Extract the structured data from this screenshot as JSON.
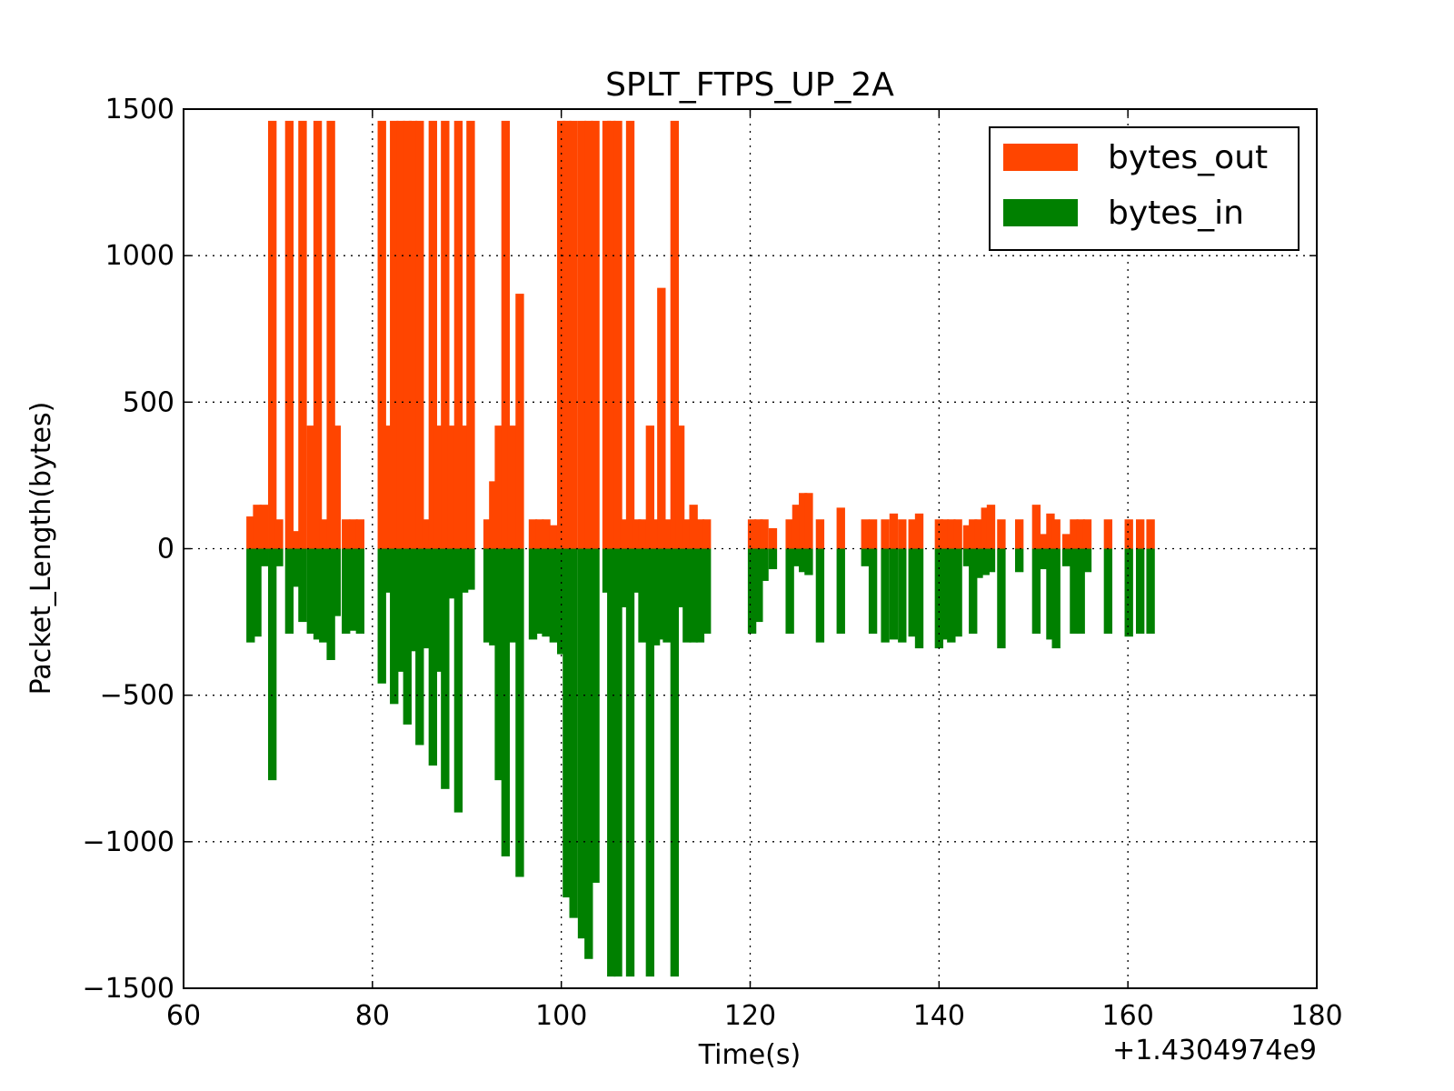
{
  "chart_data": {
    "type": "bar",
    "title": "SPLT_FTPS_UP_2A",
    "x_label": "Time(s)",
    "y_label": "Packet_Length(bytes)",
    "x_offset_label": "+1.4304974e9",
    "x": [
      67.1,
      67.8,
      68.5,
      69.4,
      70.1,
      71.2,
      72.0,
      72.6,
      73.5,
      74.2,
      74.8,
      75.6,
      76.2,
      77.2,
      78.0,
      78.7,
      81.0,
      81.6,
      82.3,
      83.0,
      83.7,
      84.3,
      85.0,
      85.7,
      86.4,
      87.0,
      87.7,
      88.4,
      89.1,
      89.7,
      90.4,
      92.2,
      92.8,
      93.4,
      94.1,
      94.8,
      95.6,
      97.0,
      97.7,
      98.4,
      99.2,
      100.0,
      100.6,
      101.3,
      102.2,
      102.9,
      103.6,
      104.8,
      105.3,
      106.0,
      106.7,
      107.3,
      108.0,
      108.6,
      109.4,
      110.0,
      110.6,
      111.2,
      112.0,
      112.6,
      113.3,
      114.0,
      114.7,
      115.4,
      120.2,
      120.9,
      121.5,
      122.4,
      124.2,
      124.9,
      125.6,
      126.2,
      127.4,
      129.6,
      132.2,
      133.0,
      134.3,
      135.2,
      136.1,
      137.2,
      137.9,
      140.0,
      140.6,
      141.3,
      142.0,
      143.0,
      143.6,
      144.2,
      144.9,
      145.5,
      146.6,
      148.5,
      150.3,
      151.0,
      151.8,
      152.4,
      153.5,
      154.3,
      155.0,
      155.7,
      157.9,
      160.1,
      161.3,
      162.4
    ],
    "series": [
      {
        "name": "bytes_out",
        "color": "#ff4500",
        "values": [
          110,
          150,
          150,
          1460,
          100,
          1460,
          60,
          1460,
          420,
          1460,
          100,
          1460,
          420,
          100,
          100,
          100,
          1460,
          420,
          1460,
          1460,
          1460,
          1460,
          1460,
          100,
          1460,
          420,
          1460,
          420,
          1460,
          420,
          1460,
          100,
          230,
          420,
          1460,
          420,
          870,
          100,
          100,
          100,
          80,
          1460,
          1460,
          1460,
          1460,
          1460,
          1460,
          1460,
          1460,
          1460,
          100,
          1460,
          100,
          100,
          420,
          100,
          890,
          100,
          1460,
          420,
          100,
          150,
          100,
          100,
          100,
          100,
          100,
          70,
          100,
          150,
          190,
          190,
          100,
          140,
          100,
          100,
          100,
          120,
          100,
          100,
          120,
          100,
          100,
          100,
          100,
          80,
          100,
          100,
          140,
          150,
          100,
          100,
          150,
          50,
          120,
          100,
          50,
          100,
          100,
          100,
          100,
          100,
          100,
          100
        ]
      },
      {
        "name": "bytes_in",
        "color": "#008000",
        "values": [
          -320,
          -300,
          -60,
          -790,
          -60,
          -290,
          -130,
          -250,
          -290,
          -310,
          -320,
          -380,
          -230,
          -290,
          -280,
          -290,
          -460,
          -150,
          -530,
          -420,
          -600,
          -350,
          -670,
          -340,
          -740,
          -420,
          -820,
          -170,
          -900,
          -150,
          -140,
          -320,
          -330,
          -790,
          -1050,
          -320,
          -1120,
          -310,
          -290,
          -300,
          -320,
          -360,
          -1190,
          -1260,
          -1330,
          -1400,
          -1140,
          -150,
          -1460,
          -1460,
          -200,
          -1460,
          -150,
          -320,
          -1460,
          -330,
          -310,
          -320,
          -1460,
          -200,
          -320,
          -320,
          -320,
          -290,
          -290,
          -250,
          -110,
          -70,
          -290,
          -60,
          -80,
          -90,
          -320,
          -290,
          -60,
          -290,
          -320,
          -310,
          -320,
          -300,
          -340,
          -340,
          -310,
          -320,
          -300,
          -60,
          -290,
          -100,
          -90,
          -80,
          -340,
          -80,
          -290,
          -70,
          -310,
          -340,
          -60,
          -290,
          -290,
          -80,
          -290,
          -300,
          -290,
          -290
        ]
      }
    ],
    "bar_width": 0.9,
    "xlim": [
      60,
      180
    ],
    "xticks": [
      60,
      80,
      100,
      120,
      140,
      160,
      180
    ],
    "ylim": [
      -1500,
      1500
    ],
    "yticks": [
      {
        "value": -1500,
        "label": "−1500"
      },
      {
        "value": -1000,
        "label": "−1000"
      },
      {
        "value": -500,
        "label": "−500"
      },
      0,
      500,
      1000,
      1500
    ],
    "grid": true,
    "legend": "upper right"
  }
}
